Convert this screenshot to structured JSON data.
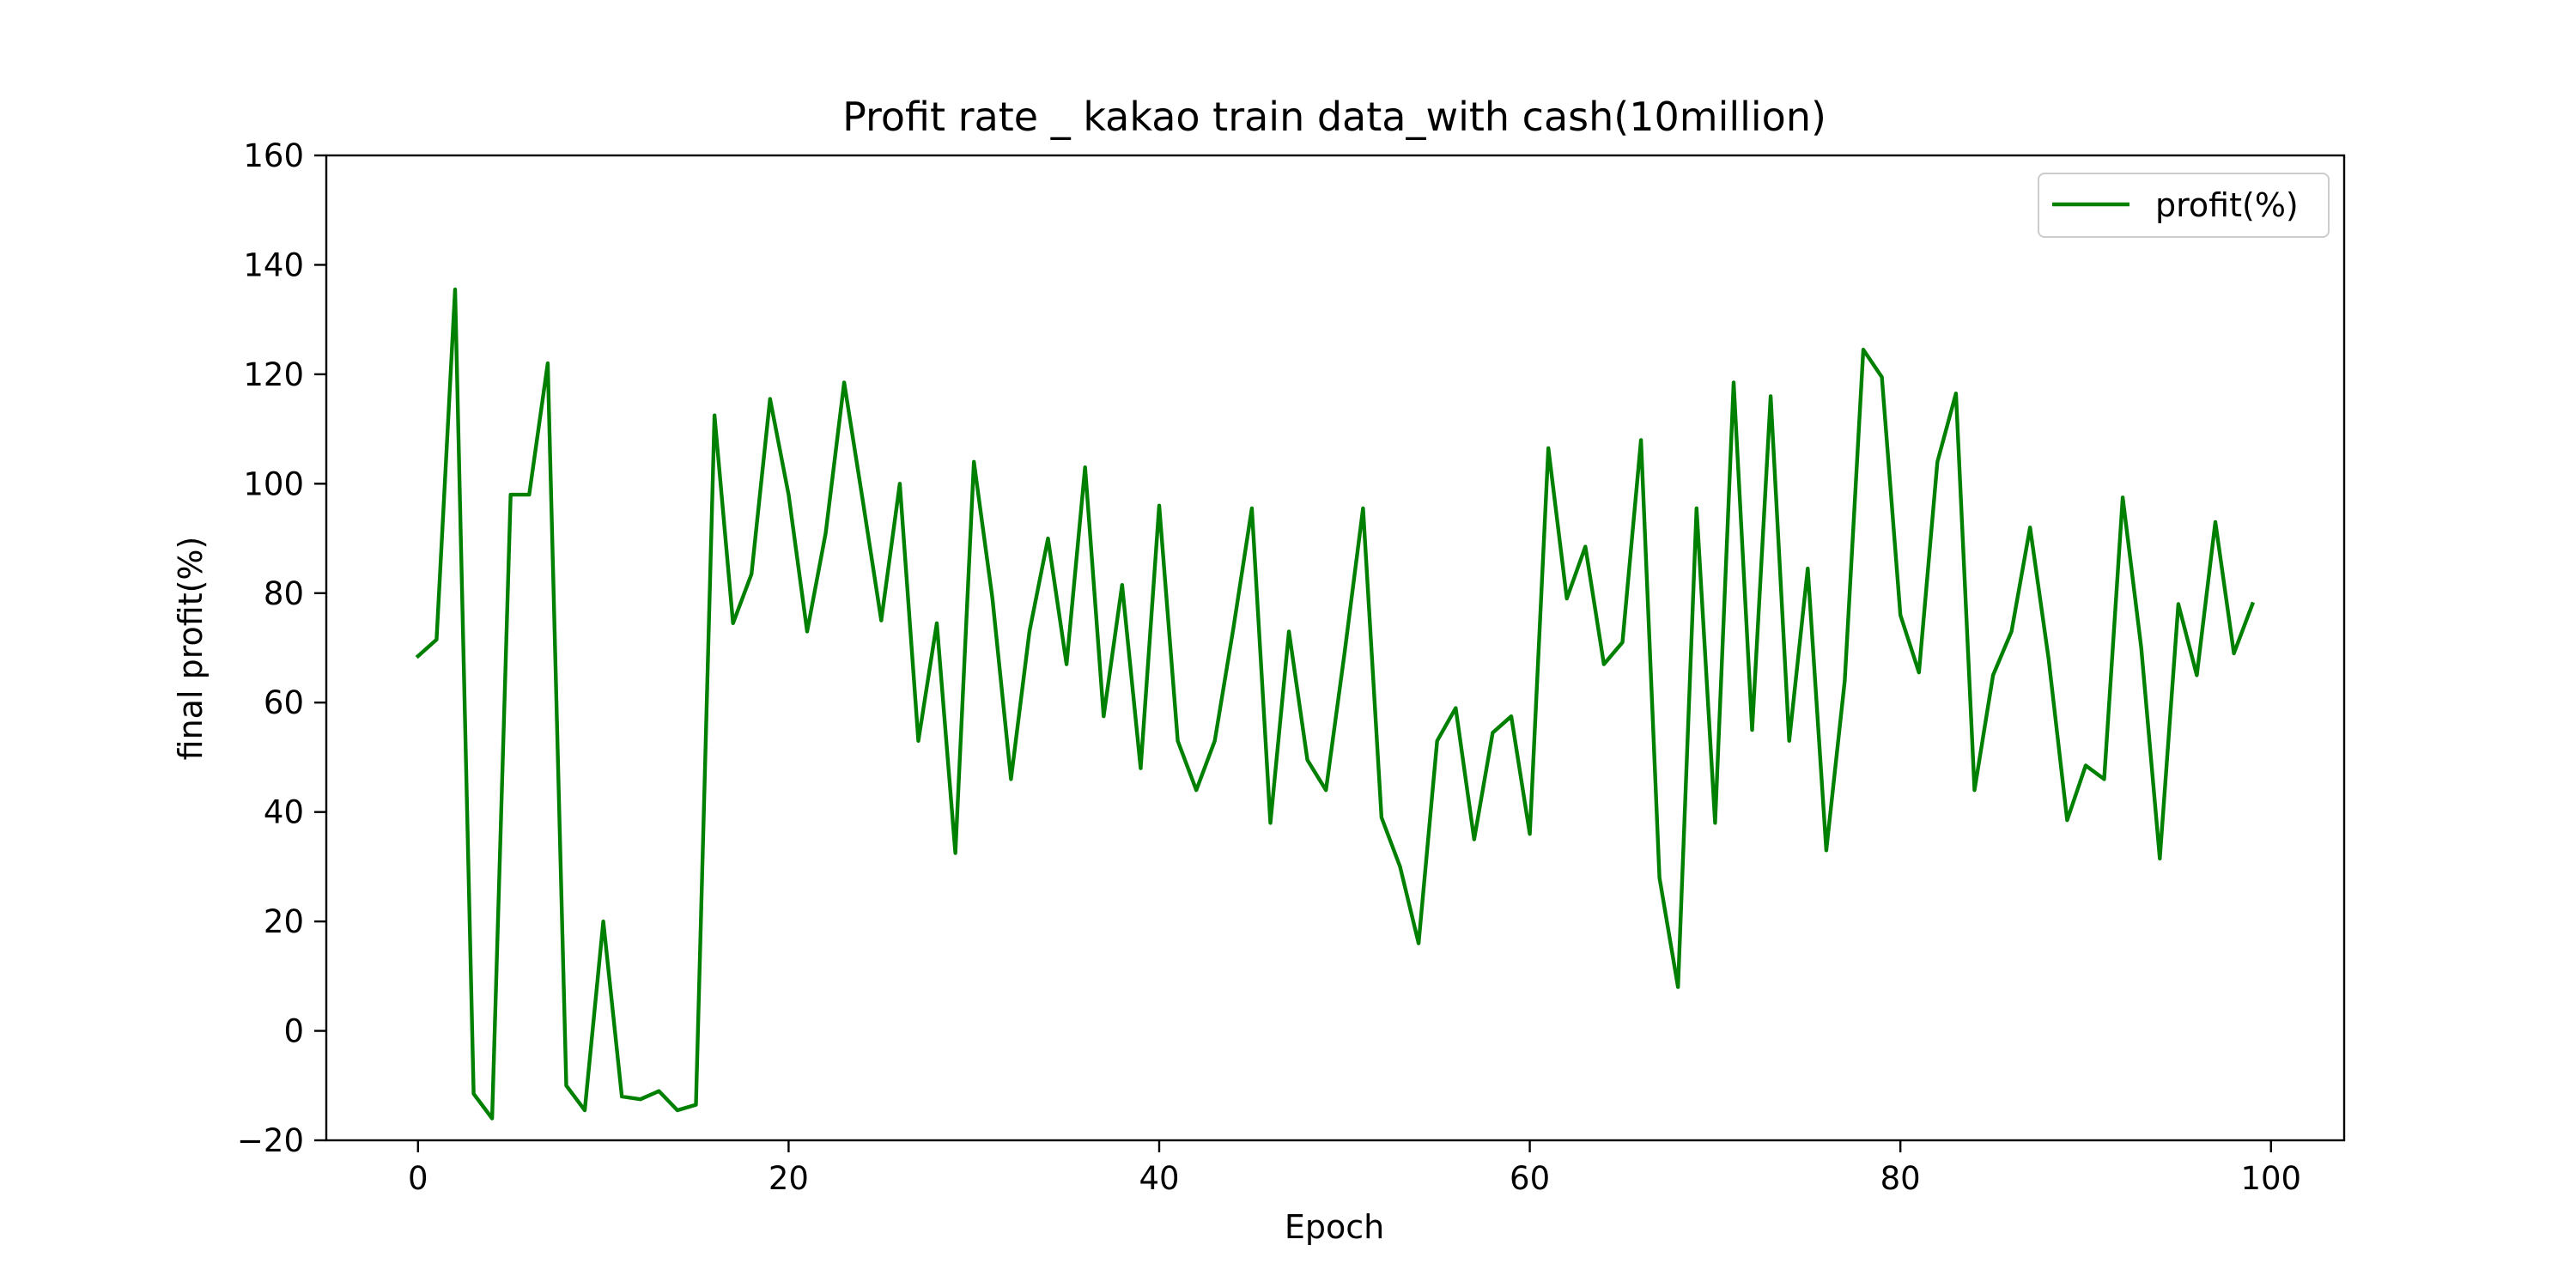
{
  "chart_data": {
    "type": "line",
    "title": "Profit rate _ kakao train data_with cash(10million)",
    "xlabel": "Epoch",
    "ylabel": "final profit(%)",
    "xlim": [
      -4.95,
      103.95
    ],
    "ylim": [
      -20,
      160
    ],
    "xticks": [
      0,
      20,
      40,
      60,
      80,
      100
    ],
    "yticks": [
      -20,
      0,
      20,
      40,
      60,
      80,
      100,
      120,
      140,
      160
    ],
    "grid": false,
    "legend": {
      "position": "top-right",
      "entries": [
        "profit(%)"
      ]
    },
    "series": [
      {
        "name": "profit(%)",
        "color": "#008000",
        "x": [
          0,
          1,
          2,
          3,
          4,
          5,
          6,
          7,
          8,
          9,
          10,
          11,
          12,
          13,
          14,
          15,
          16,
          17,
          18,
          19,
          20,
          21,
          22,
          23,
          24,
          25,
          26,
          27,
          28,
          29,
          30,
          31,
          32,
          33,
          34,
          35,
          36,
          37,
          38,
          39,
          40,
          41,
          42,
          43,
          44,
          45,
          46,
          47,
          48,
          49,
          50,
          51,
          52,
          53,
          54,
          55,
          56,
          57,
          58,
          59,
          60,
          61,
          62,
          63,
          64,
          65,
          66,
          67,
          68,
          69,
          70,
          71,
          72,
          73,
          74,
          75,
          76,
          77,
          78,
          79,
          80,
          81,
          82,
          83,
          84,
          85,
          86,
          87,
          88,
          89,
          90,
          91,
          92,
          93,
          94,
          95,
          96,
          97,
          98,
          99
        ],
        "values": [
          68.5,
          71.5,
          135.5,
          -11.5,
          -16,
          98,
          98,
          122,
          -10,
          -14.5,
          20,
          -12,
          -12.5,
          -11,
          -14.5,
          -13.5,
          112.5,
          74.5,
          83.5,
          115.5,
          98,
          73,
          91,
          118.5,
          97,
          75,
          100,
          53,
          74.5,
          32.5,
          104,
          79,
          46,
          73,
          90,
          67,
          103,
          57.5,
          81.5,
          48,
          96,
          53,
          44,
          53,
          73.5,
          95.5,
          38,
          73,
          49.5,
          44,
          69,
          95.5,
          39,
          30,
          16,
          53,
          59,
          35,
          54.5,
          57.5,
          36,
          106.5,
          79,
          88.5,
          67,
          71,
          108,
          28,
          8,
          95.5,
          38,
          118.5,
          55,
          116,
          53,
          84.5,
          33,
          64,
          124.5,
          119.5,
          76,
          65.5,
          104,
          116.5,
          44,
          65,
          73,
          92,
          68,
          38.5,
          48.5,
          46,
          97.5,
          70,
          31.5,
          78,
          65,
          93,
          69,
          78
        ]
      }
    ]
  }
}
